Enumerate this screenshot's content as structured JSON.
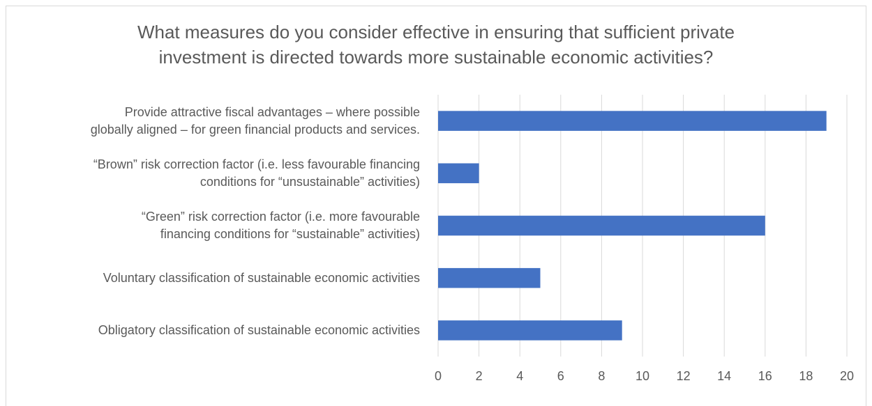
{
  "chart_data": {
    "type": "bar",
    "orientation": "horizontal",
    "title_lines": [
      "What measures do you consider effective in ensuring that sufficient private",
      "investment is directed towards more sustainable economic activities?"
    ],
    "categories": [
      {
        "lines": [
          "Provide attractive fiscal advantages – where possible",
          "globally aligned – for green financial products and services."
        ],
        "value": 19
      },
      {
        "lines": [
          "“Brown” risk correction factor (i.e. less favourable financing",
          "conditions for “unsustainable” activities)"
        ],
        "value": 2
      },
      {
        "lines": [
          "“Green” risk correction factor (i.e. more favourable",
          "financing conditions for “sustainable” activities)"
        ],
        "value": 16
      },
      {
        "lines": [
          "Voluntary classification of sustainable economic activities"
        ],
        "value": 5
      },
      {
        "lines": [
          "Obligatory classification of sustainable economic activities"
        ],
        "value": 9
      }
    ],
    "xlim": [
      0,
      20
    ],
    "x_ticks": [
      "0",
      "2",
      "4",
      "6",
      "8",
      "10",
      "12",
      "14",
      "16",
      "18",
      "20"
    ],
    "gridlines": "vertical",
    "bar_color": "#4472c4",
    "grid_color": "#d9d9d9",
    "legend": "none"
  }
}
